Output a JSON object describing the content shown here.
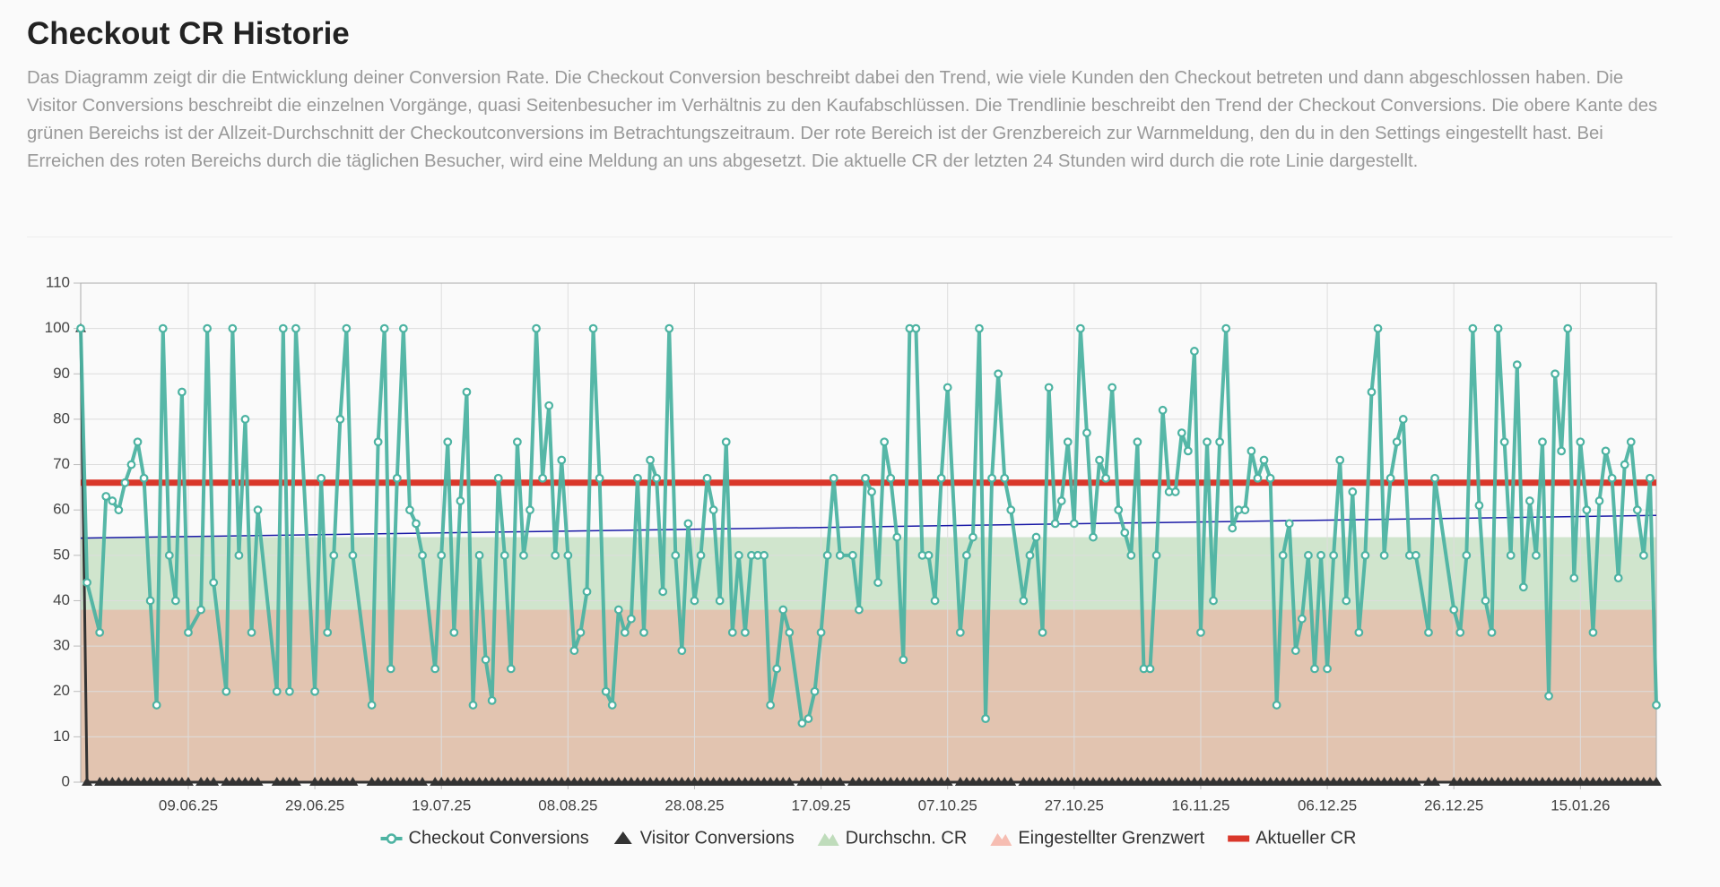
{
  "header": {
    "title": "Checkout CR Historie",
    "description": "Das Diagramm zeigt dir die Entwicklung deiner Conversion Rate. Die Checkout Conversion beschreibt dabei den Trend, wie viele Kunden den Checkout betreten und dann abgeschlossen haben. Die Visitor Conversions beschreibt die einzelnen Vorgänge, quasi Seitenbesucher im Verhältnis zu den Kaufabschlüssen. Die Trendlinie beschreibt den Trend der Checkout Conversions. Die obere Kante des grünen Bereichs ist der Allzeit-Durchschnitt der Checkoutconversions im Betrachtungszeitraum. Der rote Bereich ist der Grenzbereich zur Warnmeldung, den du in den Settings eingestellt hast. Bei Erreichen des roten Bereichs durch die täglichen Besucher, wird eine Meldung an uns abgesetzt. Die aktuelle CR der letzten 24 Stunden wird durch die rote Linie dargestellt."
  },
  "chart_data": {
    "type": "line",
    "x": [
      "23.05.25",
      "24.05.25",
      "26.05.25",
      "27.05.25",
      "28.05.25",
      "29.05.25",
      "30.05.25",
      "31.05.25",
      "01.06.25",
      "02.06.25",
      "03.06.25",
      "04.06.25",
      "05.06.25",
      "06.06.25",
      "07.06.25",
      "08.06.25",
      "09.06.25",
      "11.06.25",
      "12.06.25",
      "13.06.25",
      "15.06.25",
      "16.06.25",
      "17.06.25",
      "18.06.25",
      "19.06.25",
      "20.06.25",
      "23.06.25",
      "24.06.25",
      "25.06.25",
      "26.06.25",
      "29.06.25",
      "30.06.25",
      "01.07.25",
      "02.07.25",
      "03.07.25",
      "04.07.25",
      "05.07.25",
      "08.07.25",
      "09.07.25",
      "10.07.25",
      "11.07.25",
      "12.07.25",
      "13.07.25",
      "14.07.25",
      "15.07.25",
      "16.07.25",
      "18.07.25",
      "19.07.25",
      "20.07.25",
      "21.07.25",
      "22.07.25",
      "23.07.25",
      "24.07.25",
      "25.07.25",
      "26.07.25",
      "27.07.25",
      "28.07.25",
      "29.07.25",
      "30.07.25",
      "31.07.25",
      "01.08.25",
      "02.08.25",
      "03.08.25",
      "04.08.25",
      "05.08.25",
      "06.08.25",
      "07.08.25",
      "08.08.25",
      "09.08.25",
      "10.08.25",
      "11.08.25",
      "12.08.25",
      "13.08.25",
      "14.08.25",
      "15.08.25",
      "16.08.25",
      "17.08.25",
      "18.08.25",
      "19.08.25",
      "20.08.25",
      "21.08.25",
      "22.08.25",
      "23.08.25",
      "24.08.25",
      "25.08.25",
      "26.08.25",
      "27.08.25",
      "28.08.25",
      "29.08.25",
      "30.08.25",
      "31.08.25",
      "01.09.25",
      "02.09.25",
      "03.09.25",
      "04.09.25",
      "05.09.25",
      "06.09.25",
      "07.09.25",
      "08.09.25",
      "09.09.25",
      "10.09.25",
      "11.09.25",
      "12.09.25",
      "14.09.25",
      "15.09.25",
      "16.09.25",
      "17.09.25",
      "18.09.25",
      "19.09.25",
      "20.09.25",
      "22.09.25",
      "23.09.25",
      "24.09.25",
      "25.09.25",
      "26.09.25",
      "27.09.25",
      "28.09.25",
      "29.09.25",
      "30.09.25",
      "01.10.25",
      "02.10.25",
      "03.10.25",
      "04.10.25",
      "05.10.25",
      "06.10.25",
      "07.10.25",
      "09.10.25",
      "10.10.25",
      "11.10.25",
      "12.10.25",
      "13.10.25",
      "14.10.25",
      "15.10.25",
      "16.10.25",
      "17.10.25",
      "19.10.25",
      "20.10.25",
      "21.10.25",
      "22.10.25",
      "23.10.25",
      "24.10.25",
      "25.10.25",
      "26.10.25",
      "27.10.25",
      "28.10.25",
      "29.10.25",
      "30.10.25",
      "31.10.25",
      "01.11.25",
      "02.11.25",
      "03.11.25",
      "04.11.25",
      "05.11.25",
      "06.11.25",
      "07.11.25",
      "08.11.25",
      "09.11.25",
      "10.11.25",
      "11.11.25",
      "12.11.25",
      "13.11.25",
      "14.11.25",
      "15.11.25",
      "16.11.25",
      "17.11.25",
      "18.11.25",
      "19.11.25",
      "20.11.25",
      "21.11.25",
      "22.11.25",
      "23.11.25",
      "24.11.25",
      "25.11.25",
      "26.11.25",
      "27.11.25",
      "28.11.25",
      "29.11.25",
      "30.11.25",
      "01.12.25",
      "02.12.25",
      "03.12.25",
      "04.12.25",
      "05.12.25",
      "06.12.25",
      "07.12.25",
      "08.12.25",
      "09.12.25",
      "10.12.25",
      "11.12.25",
      "12.12.25",
      "13.12.25",
      "14.12.25",
      "15.12.25",
      "16.12.25",
      "17.12.25",
      "18.12.25",
      "19.12.25",
      "20.12.25",
      "22.12.25",
      "23.12.25",
      "26.12.25",
      "27.12.25",
      "28.12.25",
      "29.12.25",
      "30.12.25",
      "31.12.25",
      "01.01.26",
      "02.01.26",
      "03.01.26",
      "04.01.26",
      "05.01.26",
      "06.01.26",
      "07.01.26",
      "08.01.26",
      "09.01.26",
      "10.01.26",
      "11.01.26",
      "12.01.26",
      "13.01.26",
      "14.01.26",
      "15.01.26",
      "16.01.26",
      "17.01.26",
      "18.01.26",
      "19.01.26",
      "20.01.26",
      "21.01.26",
      "22.01.26",
      "23.01.26",
      "24.01.26",
      "25.01.26",
      "26.01.26",
      "27.01.26"
    ],
    "series": [
      {
        "name": "Checkout Conversions",
        "color": "#4db3a2",
        "marker": "circle",
        "values": [
          100,
          44,
          33,
          63,
          62,
          60,
          66,
          70,
          75,
          67,
          40,
          17,
          100,
          50,
          40,
          86,
          33,
          38,
          100,
          44,
          20,
          100,
          50,
          80,
          33,
          60,
          20,
          100,
          20,
          100,
          20,
          67,
          33,
          50,
          80,
          100,
          50,
          17,
          75,
          100,
          25,
          67,
          100,
          60,
          57,
          50,
          25,
          50,
          75,
          33,
          62,
          86,
          17,
          50,
          27,
          18,
          67,
          50,
          25,
          75,
          50,
          60,
          100,
          67,
          83,
          50,
          71,
          50,
          29,
          33,
          42,
          100,
          67,
          20,
          17,
          38,
          33,
          36,
          67,
          33,
          71,
          67,
          42,
          100,
          50,
          29,
          57,
          40,
          50,
          67,
          60,
          40,
          75,
          33,
          50,
          33,
          50,
          50,
          50,
          17,
          25,
          38,
          33,
          13,
          14,
          20,
          33,
          50,
          67,
          50,
          50,
          38,
          67,
          64,
          44,
          75,
          67,
          54,
          27,
          100,
          100,
          50,
          50,
          40,
          67,
          87,
          33,
          50,
          54,
          100,
          14,
          67,
          90,
          67,
          60,
          40,
          50,
          54,
          33,
          87,
          57,
          62,
          75,
          57,
          100,
          77,
          54,
          71,
          67,
          87,
          60,
          55,
          50,
          75,
          25,
          25,
          50,
          82,
          64,
          64,
          77,
          73,
          95,
          33,
          75,
          40,
          75,
          100,
          56,
          60,
          60,
          73,
          67,
          71,
          67,
          17,
          50,
          57,
          29,
          36,
          50,
          25,
          50,
          25,
          50,
          71,
          40,
          64,
          33,
          50,
          86,
          100,
          50,
          67,
          75,
          80,
          50,
          50,
          33,
          67,
          38,
          33,
          50,
          100,
          61,
          40,
          33,
          100,
          75,
          50,
          92,
          43,
          62,
          50,
          75,
          19,
          90,
          73,
          100,
          45,
          75,
          60,
          33,
          62,
          73,
          67,
          45,
          70,
          75,
          60,
          50,
          67,
          17
        ]
      },
      {
        "name": "Visitor Conversions",
        "color": "#333333",
        "marker": "triangle",
        "values": [
          100,
          0,
          0,
          0,
          0,
          0,
          0,
          0,
          0,
          0,
          0,
          0,
          0,
          0,
          0,
          0,
          0,
          0,
          0,
          0,
          0,
          0,
          0,
          0,
          0,
          0,
          0,
          0,
          0,
          0,
          0,
          0,
          0,
          0,
          0,
          0,
          0,
          0,
          0,
          0,
          0,
          0,
          0,
          0,
          0,
          0,
          0,
          0,
          0,
          0,
          0,
          0,
          0,
          0,
          0,
          0,
          0,
          0,
          0,
          0,
          0,
          0,
          0,
          0,
          0,
          0,
          0,
          0,
          0,
          0,
          0,
          0,
          0,
          0,
          0,
          0,
          0,
          0,
          0,
          0,
          0,
          0,
          0,
          0,
          0,
          0,
          0,
          0,
          0,
          0,
          0,
          0,
          0,
          0,
          0,
          0,
          0,
          0,
          0,
          0,
          0,
          0,
          0,
          0,
          0,
          0,
          0,
          0,
          0,
          0,
          0,
          0,
          0,
          0,
          0,
          0,
          0,
          0,
          0,
          0,
          0,
          0,
          0,
          0,
          0,
          0,
          0,
          0,
          0,
          0,
          0,
          0,
          0,
          0,
          0,
          0,
          0,
          0,
          0,
          0,
          0,
          0,
          0,
          0,
          0,
          0,
          0,
          0,
          0,
          0,
          0,
          0,
          0,
          0,
          0,
          0,
          0,
          0,
          0,
          0,
          0,
          0,
          0,
          0,
          0,
          0,
          0,
          0,
          0,
          0,
          0,
          0,
          0,
          0,
          0,
          0,
          0,
          0,
          0,
          0,
          0,
          0,
          0,
          0,
          0,
          0,
          0,
          0,
          0,
          0,
          0,
          0,
          0,
          0,
          0,
          0,
          0,
          0,
          0,
          0,
          0,
          0,
          0,
          0,
          0,
          0,
          0,
          0,
          0,
          0,
          0,
          0,
          0,
          0,
          0,
          0,
          0,
          0,
          0,
          0,
          0,
          0,
          0,
          0,
          0,
          0,
          0,
          0,
          0,
          0,
          0,
          0,
          0
        ]
      }
    ],
    "bands": [
      {
        "name": "Durchschn. CR",
        "color": "#a5cfa0",
        "value": 54
      },
      {
        "name": "Eingestellter Grenzwert",
        "color": "#f4a393",
        "value": 38
      }
    ],
    "reference_line": {
      "name": "Aktueller CR",
      "color": "#d9372a",
      "value": 66
    },
    "trendline": {
      "color": "#1a1aa6",
      "start": 53.8,
      "end": 58.8
    },
    "xlim": [
      "23.05.25",
      "27.01.26"
    ],
    "xticks": [
      "09.06.25",
      "29.06.25",
      "19.07.25",
      "08.08.25",
      "28.08.25",
      "17.09.25",
      "07.10.25",
      "27.10.25",
      "16.11.25",
      "06.12.25",
      "26.12.25",
      "15.01.26"
    ],
    "ylim": [
      0,
      110
    ],
    "yticks": [
      0,
      10,
      20,
      30,
      40,
      50,
      60,
      70,
      80,
      90,
      100,
      110
    ],
    "grid": true
  }
}
